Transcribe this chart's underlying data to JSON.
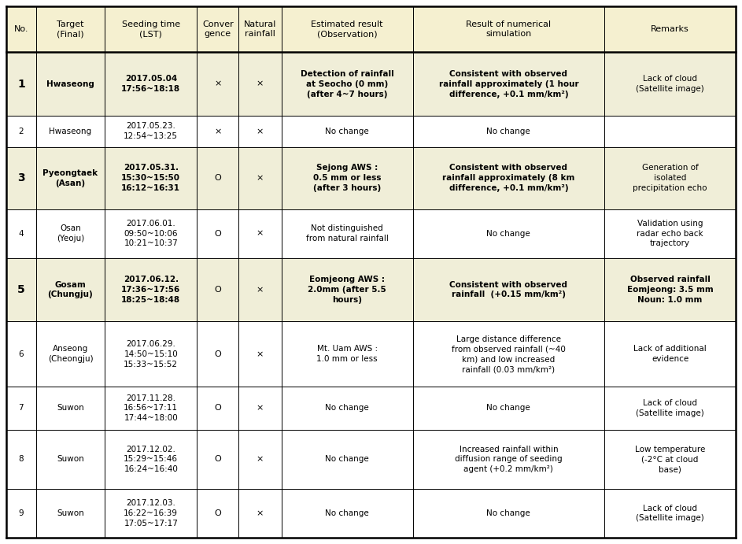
{
  "header_bg": "#f5f0d0",
  "body_bg": "#ffffff",
  "highlight_bg": "#f0eed8",
  "highlight_rows": [
    0,
    2,
    4
  ],
  "col_props": [
    0.038,
    0.088,
    0.118,
    0.053,
    0.055,
    0.168,
    0.245,
    0.168
  ],
  "row_h_props": [
    1.55,
    2.15,
    1.05,
    2.1,
    1.65,
    2.15,
    2.2,
    1.45,
    2.0,
    1.65
  ],
  "col_labels": [
    "No.",
    "Target\n(Final)",
    "Seeding time\n(LST)",
    "Conver\ngence",
    "Natural\nrainfall",
    "Estimated result\n(Observation)",
    "Result of numerical\nsimulation",
    "Remarks"
  ],
  "rows": [
    {
      "no": "1",
      "no_bold": true,
      "target": "Hwaseong",
      "target_bold": true,
      "seeding": "2017.05.04\n17:56~18:18",
      "seeding_bold": true,
      "conv": "×",
      "nat": "×",
      "est": "Detection of rainfall\nat Seocho (0 mm)\n(after 4~7 hours)",
      "est_bold": true,
      "num": "Consistent with observed\nrainfall approximately (1 hour\ndifference, +0.1 mm/km²)",
      "num_bold": true,
      "rem": "Lack of cloud\n(Satellite image)",
      "rem_bold": false
    },
    {
      "no": "2",
      "no_bold": false,
      "target": "Hwaseong",
      "target_bold": false,
      "seeding": "2017.05.23.\n12:54~13:25",
      "seeding_bold": false,
      "conv": "×",
      "nat": "×",
      "est": "No change",
      "est_bold": false,
      "num": "No change",
      "num_bold": false,
      "rem": "",
      "rem_bold": false
    },
    {
      "no": "3",
      "no_bold": true,
      "target": "Pyeongtaek\n(Asan)",
      "target_bold": true,
      "seeding": "2017.05.31.\n15:30~15:50\n16:12~16:31",
      "seeding_bold": true,
      "conv": "O",
      "nat": "×",
      "est": "Sejong AWS :\n0.5 mm or less\n(after 3 hours)",
      "est_bold": true,
      "num": "Consistent with observed\nrainfall approximately (8 km\ndifference, +0.1 mm/km²)",
      "num_bold": true,
      "rem": "Generation of\nisolated\nprecipitation echo",
      "rem_bold": false
    },
    {
      "no": "4",
      "no_bold": false,
      "target": "Osan\n(Yeoju)",
      "target_bold": false,
      "seeding": "2017.06.01.\n09:50~10:06\n10:21~10:37",
      "seeding_bold": false,
      "conv": "O",
      "nat": "×",
      "est": "Not distinguished\nfrom natural rainfall",
      "est_bold": false,
      "num": "No change",
      "num_bold": false,
      "rem": "Validation using\nradar echo back\ntrajectory",
      "rem_bold": false
    },
    {
      "no": "5",
      "no_bold": true,
      "target": "Gosam\n(Chungju)",
      "target_bold": true,
      "seeding": "2017.06.12.\n17:36~17:56\n18:25~18:48",
      "seeding_bold": true,
      "conv": "O",
      "nat": "×",
      "est": "Eomjeong AWS :\n2.0mm (after 5.5\nhours)",
      "est_bold": true,
      "num": "Consistent with observed\nrainfall  (+0.15 mm/km²)",
      "num_bold": true,
      "rem": "Observed rainfall\nEomjeong: 3.5 mm\nNoun: 1.0 mm",
      "rem_bold": true
    },
    {
      "no": "6",
      "no_bold": false,
      "target": "Anseong\n(Cheongju)",
      "target_bold": false,
      "seeding": "2017.06.29.\n14:50~15:10\n15:33~15:52",
      "seeding_bold": false,
      "conv": "O",
      "nat": "×",
      "est": "Mt. Uam AWS :\n1.0 mm or less",
      "est_bold": false,
      "num": "Large distance difference\nfrom observed rainfall (~40\nkm) and low increased\nrainfall (0.03 mm/km²)",
      "num_bold": false,
      "rem": "Lack of additional\nevidence",
      "rem_bold": false
    },
    {
      "no": "7",
      "no_bold": false,
      "target": "Suwon",
      "target_bold": false,
      "seeding": "2017.11.28.\n16:56~17:11\n17:44~18:00",
      "seeding_bold": false,
      "conv": "O",
      "nat": "×",
      "est": "No change",
      "est_bold": false,
      "num": "No change",
      "num_bold": false,
      "rem": "Lack of cloud\n(Satellite image)",
      "rem_bold": false
    },
    {
      "no": "8",
      "no_bold": false,
      "target": "Suwon",
      "target_bold": false,
      "seeding": "2017.12.02.\n15:29~15:46\n16:24~16:40",
      "seeding_bold": false,
      "conv": "O",
      "nat": "×",
      "est": "No change",
      "est_bold": false,
      "num": "Increased rainfall within\ndiffusion range of seeding\nagent (+0.2 mm/km²)",
      "num_bold": false,
      "rem": "Low temperature\n(-2°C at cloud\nbase)",
      "rem_bold": false
    },
    {
      "no": "9",
      "no_bold": false,
      "target": "Suwon",
      "target_bold": false,
      "seeding": "2017.12.03.\n16:22~16:39\n17:05~17:17",
      "seeding_bold": false,
      "conv": "O",
      "nat": "×",
      "est": "No change",
      "est_bold": false,
      "num": "No change",
      "num_bold": false,
      "rem": "Lack of cloud\n(Satellite image)",
      "rem_bold": false
    }
  ]
}
